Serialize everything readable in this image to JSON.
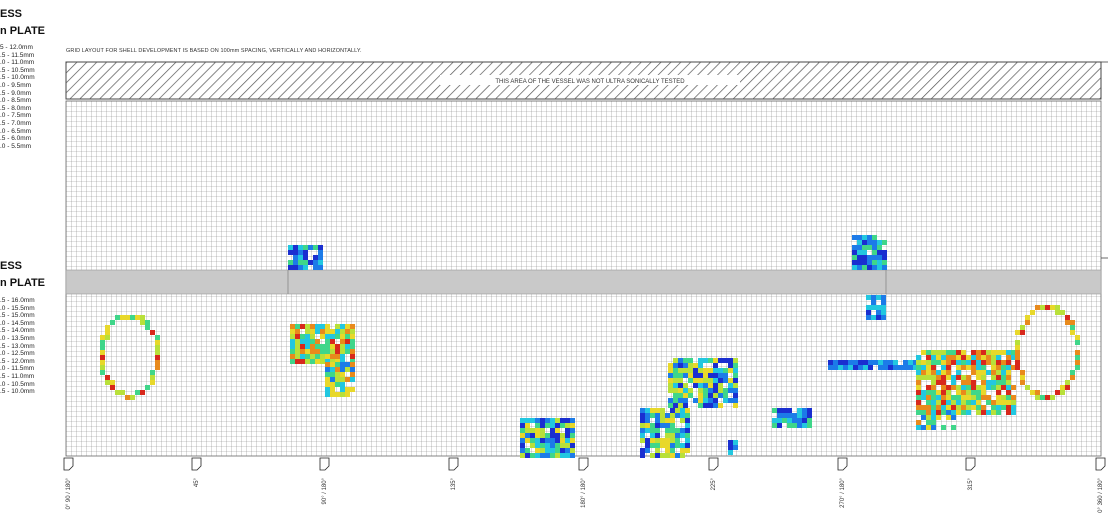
{
  "header": {
    "top_title_1": "ESS",
    "top_title_2": "n PLATE",
    "mid_title_1": "ESS",
    "mid_title_2": "n PLATE"
  },
  "note": "GRID LAYOUT FOR SHELL DEVELOPMENT IS BASED ON 100mm SPACING, VERTICALLY AND HORIZONTALLY.",
  "untested_label": "THIS AREA OF THE VESSEL WAS NOT ULTRA SONICALLY TESTED",
  "legend_upper": [
    "5 - 12.0mm",
    ".5 - 11.5mm",
    ".0 - 11.0mm",
    ".5 - 10.5mm",
    ".5 - 10.0mm",
    ".0 - 9.5mm",
    ".5 - 9.0mm",
    ".0 - 8.5mm",
    ".5 - 8.0mm",
    ".0 - 7.5mm",
    ".5 - 7.0mm",
    ".0 - 6.5mm",
    ".5 - 6.0mm",
    ".0 - 5.5mm"
  ],
  "legend_lower": [
    ".5 - 16.0mm",
    ".0 - 15.5mm",
    ".5 - 15.0mm",
    ".0 - 14.5mm",
    ".5 - 14.0mm",
    ".0 - 13.5mm",
    ".5 - 13.0mm",
    ".0 - 12.5mm",
    ".5 - 12.0mm",
    ".0 - 11.5mm",
    ".5 - 11.0mm",
    ".0 - 10.5mm",
    ".5 - 10.0mm"
  ],
  "bottom_markers": [
    "0° 90 / 180°",
    "45°",
    "90° / 180°",
    "135°",
    "180° / 180°",
    "225°",
    "270° / 180°",
    "315°",
    "0° 360 / 180°"
  ],
  "colors": {
    "grid_line": "#8a8a8a",
    "band": "#c9c9c9",
    "hatch": "#555555",
    "scale": [
      "#1a2fd0",
      "#1c7be8",
      "#22c7e0",
      "#3fd68a",
      "#b8e03a",
      "#e8d82a",
      "#e88a1c",
      "#d8281c"
    ]
  }
}
